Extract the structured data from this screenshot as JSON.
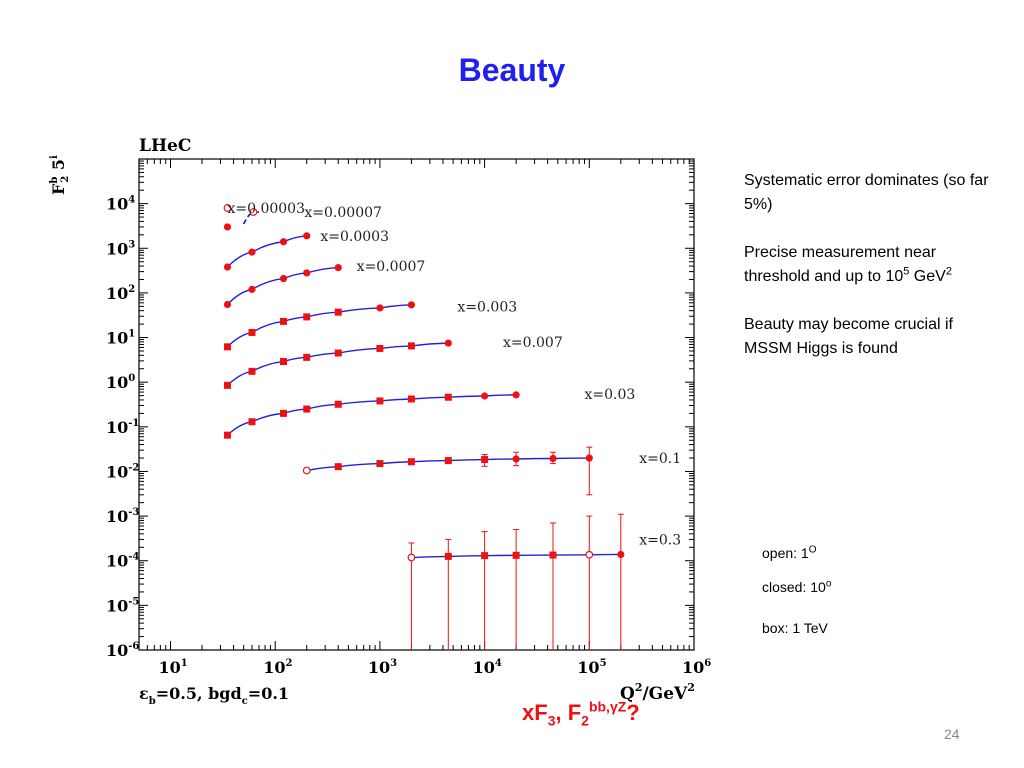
{
  "slide": {
    "title": "Beauty",
    "page_number": "24"
  },
  "notes": {
    "p1": "Systematic error dominates (so far 5%)",
    "p2_main": "Precise measurement near threshold and up to 10",
    "p2_exp": "5",
    "p2_unit": " GeV",
    "p2_unit_exp": "2",
    "p3": "Beauty may become crucial if MSSM Higgs is found"
  },
  "marker_legend": {
    "open_label": "open: 1",
    "open_exp": "O",
    "closed_label": "closed: 10",
    "closed_exp": "o",
    "box_label": "box: 1 TeV"
  },
  "bottom_question": {
    "a": "xF",
    "a_sub": "3",
    "sep": ", F",
    "b_sub": "2",
    "b_sup": "bb,γZ",
    "end": "?"
  },
  "colors": {
    "title": "#1f1ff0",
    "markers": "#ee1111",
    "curves": "#2222dd",
    "question": "#ee1111"
  },
  "chart_data": {
    "type": "scatter",
    "title": "LHeC",
    "ylabel": "F2b 5i",
    "ylabel_main": "F",
    "ylabel_sub": "2",
    "ylabel_sup": "b",
    "ylabel_tail": " 5",
    "ylabel_tail_sup": "i",
    "xlabel": "Q2/GeV2",
    "xlabel_main": "Q",
    "xlabel_sup": "2",
    "xlabel_mid": "/GeV",
    "xlabel_sup2": "2",
    "footnote": "εb=0.5, bgdc=0.1",
    "footnote_a": "ε",
    "footnote_a_sub": "b",
    "footnote_b": "=0.5, bgd",
    "footnote_b_sub": "c",
    "footnote_c": "=0.1",
    "x_scale": "log",
    "y_scale": "log",
    "xlim": [
      5,
      1000000
    ],
    "ylim": [
      1e-06,
      100000
    ],
    "x_ticks": [
      {
        "label": "10",
        "exp": "1",
        "value": 10
      },
      {
        "label": "10",
        "exp": "2",
        "value": 100
      },
      {
        "label": "10",
        "exp": "3",
        "value": 1000
      },
      {
        "label": "10",
        "exp": "4",
        "value": 10000
      },
      {
        "label": "10",
        "exp": "5",
        "value": 100000
      },
      {
        "label": "10",
        "exp": "6",
        "value": 1000000
      }
    ],
    "y_ticks": [
      {
        "label": "10",
        "exp": "4",
        "value": 10000
      },
      {
        "label": "10",
        "exp": "3",
        "value": 1000
      },
      {
        "label": "10",
        "exp": "2",
        "value": 100
      },
      {
        "label": "10",
        "exp": "1",
        "value": 10
      },
      {
        "label": "10",
        "exp": "0",
        "value": 1
      },
      {
        "label": "10",
        "exp": "-1",
        "value": 0.1
      },
      {
        "label": "10",
        "exp": "-2",
        "value": 0.01
      },
      {
        "label": "10",
        "exp": "-3",
        "value": 0.001
      },
      {
        "label": "10",
        "exp": "-4",
        "value": 0.0001
      },
      {
        "label": "10",
        "exp": "-5",
        "value": 1e-05
      },
      {
        "label": "10",
        "exp": "-6",
        "value": 1e-06
      }
    ],
    "series": [
      {
        "name": "x=0.00003",
        "label_at": [
          35,
          8000
        ],
        "curve": false,
        "connect": false,
        "points": [
          {
            "x": 35,
            "y": 8000,
            "m": "open"
          },
          {
            "x": 35,
            "y": 3000,
            "m": "closed"
          }
        ]
      },
      {
        "name": "x=0.00007",
        "label_at": [
          190,
          6500
        ],
        "curve": true,
        "connect": false,
        "dashed": true,
        "points": [
          {
            "x": 50,
            "y": 3500,
            "m": "none"
          },
          {
            "x": 62,
            "y": 6500,
            "m": "open"
          }
        ]
      },
      {
        "name": "x=0.0003",
        "label_at": [
          270,
          1900
        ],
        "curve": true,
        "points": [
          {
            "x": 35,
            "y": 380,
            "m": "closed"
          },
          {
            "x": 60,
            "y": 820,
            "m": "closed"
          },
          {
            "x": 120,
            "y": 1400,
            "m": "closed"
          },
          {
            "x": 200,
            "y": 1900,
            "m": "closed"
          }
        ]
      },
      {
        "name": "x=0.0007",
        "label_at": [
          600,
          400
        ],
        "curve": true,
        "points": [
          {
            "x": 35,
            "y": 55,
            "m": "closed"
          },
          {
            "x": 60,
            "y": 120,
            "m": "closed"
          },
          {
            "x": 120,
            "y": 210,
            "m": "closed"
          },
          {
            "x": 200,
            "y": 280,
            "m": "closed"
          },
          {
            "x": 400,
            "y": 370,
            "m": "closed"
          }
        ]
      },
      {
        "name": "x=0.003",
        "label_at": [
          5500,
          50
        ],
        "curve": true,
        "points": [
          {
            "x": 35,
            "y": 6.2,
            "m": "box"
          },
          {
            "x": 60,
            "y": 13,
            "m": "box"
          },
          {
            "x": 120,
            "y": 23,
            "m": "box"
          },
          {
            "x": 200,
            "y": 29,
            "m": "box"
          },
          {
            "x": 400,
            "y": 37,
            "m": "box"
          },
          {
            "x": 1000,
            "y": 46,
            "m": "closed"
          },
          {
            "x": 2000,
            "y": 54,
            "m": "closed"
          }
        ]
      },
      {
        "name": "x=0.007",
        "label_at": [
          15000,
          8
        ],
        "curve": true,
        "points": [
          {
            "x": 35,
            "y": 0.85,
            "m": "box"
          },
          {
            "x": 60,
            "y": 1.75,
            "m": "box"
          },
          {
            "x": 120,
            "y": 2.9,
            "m": "box"
          },
          {
            "x": 200,
            "y": 3.6,
            "m": "box"
          },
          {
            "x": 400,
            "y": 4.5,
            "m": "box"
          },
          {
            "x": 1000,
            "y": 5.7,
            "m": "box"
          },
          {
            "x": 2000,
            "y": 6.5,
            "m": "box"
          },
          {
            "x": 4500,
            "y": 7.5,
            "m": "closed"
          }
        ]
      },
      {
        "name": "x=0.03",
        "label_at": [
          90000,
          0.55
        ],
        "curve": true,
        "points": [
          {
            "x": 35,
            "y": 0.065,
            "m": "box"
          },
          {
            "x": 60,
            "y": 0.13,
            "m": "box"
          },
          {
            "x": 120,
            "y": 0.2,
            "m": "box"
          },
          {
            "x": 200,
            "y": 0.25,
            "m": "box"
          },
          {
            "x": 400,
            "y": 0.32,
            "m": "box"
          },
          {
            "x": 1000,
            "y": 0.38,
            "m": "box"
          },
          {
            "x": 2000,
            "y": 0.42,
            "m": "box"
          },
          {
            "x": 4500,
            "y": 0.46,
            "m": "box"
          },
          {
            "x": 10000,
            "y": 0.49,
            "m": "closed"
          },
          {
            "x": 20000,
            "y": 0.52,
            "m": "closed"
          }
        ]
      },
      {
        "name": "x=0.1",
        "label_at": [
          300000,
          0.02
        ],
        "curve": true,
        "points": [
          {
            "x": 200,
            "y": 0.0105,
            "m": "open"
          },
          {
            "x": 400,
            "y": 0.0128,
            "m": "box"
          },
          {
            "x": 1000,
            "y": 0.015,
            "m": "box"
          },
          {
            "x": 2000,
            "y": 0.0165,
            "m": "box"
          },
          {
            "x": 4500,
            "y": 0.0175,
            "m": "box",
            "err": [
              0.0155,
              0.0195
            ]
          },
          {
            "x": 10000,
            "y": 0.0185,
            "m": "box",
            "err": [
              0.013,
              0.024
            ]
          },
          {
            "x": 20000,
            "y": 0.019,
            "m": "closed",
            "err": [
              0.0135,
              0.027
            ]
          },
          {
            "x": 45000,
            "y": 0.0195,
            "m": "closed",
            "err": [
              0.015,
              0.027
            ]
          },
          {
            "x": 100000,
            "y": 0.02,
            "m": "closed",
            "err": [
              0.003,
              0.035
            ]
          }
        ]
      },
      {
        "name": "x=0.3",
        "label_at": [
          300000,
          0.0003
        ],
        "curve": true,
        "points": [
          {
            "x": 2000,
            "y": 0.000118,
            "m": "open",
            "err": [
              5e-07,
              0.00025
            ]
          },
          {
            "x": 4500,
            "y": 0.000125,
            "m": "box",
            "err": [
              5e-07,
              0.0003
            ]
          },
          {
            "x": 10000,
            "y": 0.00013,
            "m": "box",
            "err": [
              5e-07,
              0.00045
            ]
          },
          {
            "x": 20000,
            "y": 0.000132,
            "m": "box",
            "err": [
              5e-07,
              0.0005
            ]
          },
          {
            "x": 45000,
            "y": 0.000134,
            "m": "box",
            "err": [
              5e-07,
              0.0007
            ]
          },
          {
            "x": 100000,
            "y": 0.000136,
            "m": "open",
            "err": [
              5e-07,
              0.001
            ]
          },
          {
            "x": 200000,
            "y": 0.000138,
            "m": "closed",
            "err": [
              5e-07,
              0.0011
            ]
          }
        ]
      }
    ]
  }
}
